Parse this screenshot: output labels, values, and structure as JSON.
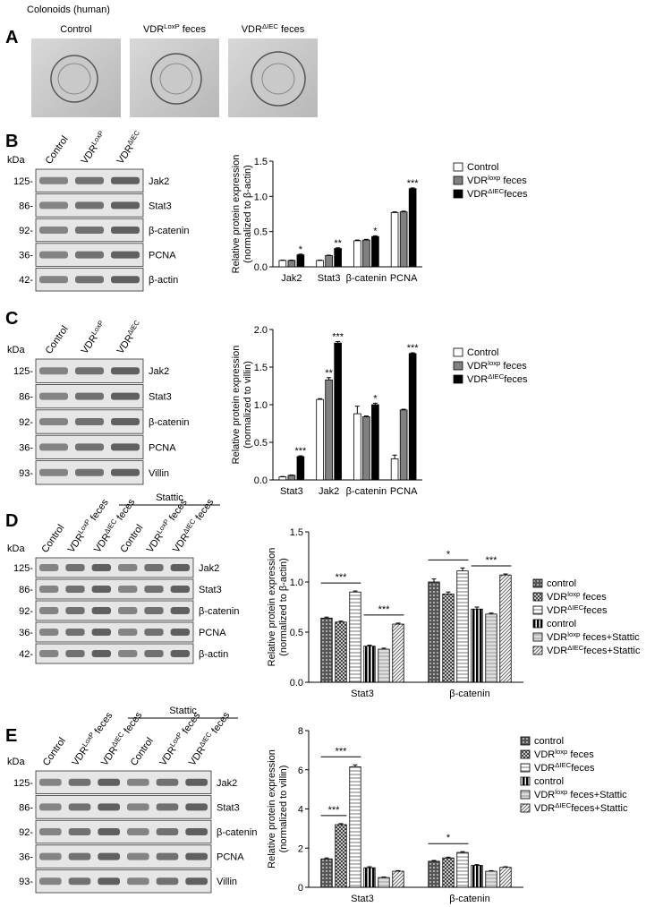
{
  "figure": {
    "A": {
      "letter": "A",
      "title": "Colonoids (human)",
      "columns": [
        "Control",
        {
          "main": "VDR",
          "sup": "LoxP",
          "rest": " feces"
        },
        {
          "main": "VDR",
          "sup": "ΔIEC",
          "rest": " feces"
        }
      ]
    },
    "B": {
      "letter": "B",
      "kda": "kDa",
      "markers": [
        "125-",
        "86-",
        "92-",
        "36-",
        "42-"
      ],
      "proteins": [
        "Jak2",
        "Stat3",
        "β-catenin",
        "PCNA",
        "β-actin"
      ],
      "lanes": [
        "Control",
        {
          "main": "VDR",
          "sup": "LoxP"
        },
        {
          "main": "VDR",
          "sup": "ΔIEC"
        }
      ]
    },
    "C": {
      "letter": "C",
      "kda": "kDa",
      "markers": [
        "125-",
        "86-",
        "92-",
        "36-",
        "93-"
      ],
      "proteins": [
        "Jak2",
        "Stat3",
        "β-catenin",
        "PCNA",
        "Villin"
      ],
      "lanes": [
        "Control",
        {
          "main": "VDR",
          "sup": "LoxP"
        },
        {
          "main": "VDR",
          "sup": "ΔIEC"
        }
      ]
    },
    "D": {
      "letter": "D",
      "kda": "kDa",
      "treatment": "Stattic",
      "markers": [
        "125-",
        "86-",
        "92-",
        "36-",
        "42-"
      ],
      "proteins": [
        "Jak2",
        "Stat3",
        "β-catenin",
        "PCNA",
        "β-actin"
      ],
      "lanes": [
        "Control",
        {
          "main": "VDR",
          "sup": "LoxP",
          "rest": " feces"
        },
        {
          "main": "VDR",
          "sup": "ΔIEC",
          "rest": " feces"
        },
        "Control",
        {
          "main": "VDR",
          "sup": "LoxP",
          "rest": " feces"
        },
        {
          "main": "VDR",
          "sup": "ΔIEC",
          "rest": " feces"
        }
      ]
    },
    "E": {
      "letter": "E",
      "kda": "kDa",
      "treatment": "Stattic",
      "markers": [
        "125-",
        "86-",
        "92-",
        "36-",
        "93-"
      ],
      "proteins": [
        "Jak2",
        "Stat3",
        "β-catenin",
        "PCNA",
        "Villin"
      ],
      "lanes": [
        "Control",
        {
          "main": "VDR",
          "sup": "LoxP",
          "rest": " feces"
        },
        {
          "main": "VDR",
          "sup": "ΔIEC",
          "rest": " feces"
        },
        "Control",
        {
          "main": "VDR",
          "sup": "LoxP",
          "rest": " feces"
        },
        {
          "main": "VDR",
          "sup": "ΔIEC",
          "rest": " feces"
        }
      ]
    }
  },
  "chart_data": [
    {
      "type": "bar",
      "ylabel": [
        "Relative protein expression",
        "(normalized to β-actin)"
      ],
      "categories": [
        "Jak2",
        "Stat3",
        "β-catenin",
        "PCNA"
      ],
      "ylim": [
        0,
        1.5
      ],
      "yticks": [
        {
          "value": 0,
          "label": "0.0"
        },
        0.5,
        {
          "value": 1,
          "label": "1.0"
        },
        1.5
      ],
      "series": [
        {
          "name": "Control",
          "color": "#ffffff",
          "values": [
            0.09,
            0.09,
            0.37,
            0.77
          ],
          "errors": [
            0.005,
            0.005,
            0.01,
            0.01
          ]
        },
        {
          "name": {
            "main": "VDR",
            "sup": "loxp",
            "rest": " feces"
          },
          "color": "#808080",
          "values": [
            0.09,
            0.16,
            0.38,
            0.78
          ],
          "errors": [
            0.005,
            0.005,
            0.01,
            0.01
          ]
        },
        {
          "name": {
            "main": "VDR",
            "sup": "ΔIEC",
            "rest": "feces"
          },
          "color": "#000000",
          "values": [
            0.17,
            0.26,
            0.43,
            1.11
          ],
          "errors": [
            0.01,
            0.01,
            0.01,
            0.01
          ],
          "significance": [
            "*",
            "**",
            "*",
            "***"
          ]
        }
      ]
    },
    {
      "type": "bar",
      "ylabel": [
        "Relative protein expression",
        "(normalized to villin)"
      ],
      "categories": [
        "Stat3",
        "Jak2",
        "β-catenin",
        "PCNA"
      ],
      "ylim": [
        0,
        2
      ],
      "yticks": [
        {
          "value": 0,
          "label": "0.0"
        },
        0.5,
        {
          "value": 1,
          "label": "1.0"
        },
        1.5,
        {
          "value": 2,
          "label": "2.0"
        }
      ],
      "series": [
        {
          "name": "Control",
          "color": "#ffffff",
          "values": [
            0.04,
            1.07,
            0.88,
            0.28
          ],
          "errors": [
            0.005,
            0.01,
            0.1,
            0.05
          ]
        },
        {
          "name": {
            "main": "VDR",
            "sup": "loxp",
            "rest": " feces"
          },
          "color": "#808080",
          "values": [
            0.06,
            1.33,
            0.84,
            0.93
          ],
          "errors": [
            0.005,
            0.03,
            0.01,
            0.01
          ],
          "significance": [
            null,
            "**",
            null,
            null
          ]
        },
        {
          "name": {
            "main": "VDR",
            "sup": "ΔIEC",
            "rest": "feces"
          },
          "color": "#000000",
          "values": [
            0.31,
            1.82,
            1.0,
            1.68
          ],
          "errors": [
            0.01,
            0.02,
            0.02,
            0.01
          ],
          "significance": [
            "***",
            "***",
            "*",
            "***"
          ]
        }
      ]
    },
    {
      "type": "bar",
      "ylabel": [
        "Relative protein expression",
        "(normalized to β-actin)"
      ],
      "categories": [
        "Stat3",
        "β-catenin"
      ],
      "ylim": [
        0,
        1.5
      ],
      "yticks": [
        {
          "value": 0,
          "label": "0.0"
        },
        0.5,
        {
          "value": 1,
          "label": "1.0"
        },
        1.5
      ],
      "series": [
        {
          "name": "control",
          "color": "#555555",
          "pattern": "checker",
          "values": [
            0.64,
            1.0
          ],
          "errors": [
            0.01,
            0.03
          ]
        },
        {
          "name": {
            "main": "VDR",
            "sup": "loxp",
            "rest": " feces"
          },
          "color": "#333333",
          "pattern": "cross",
          "values": [
            0.6,
            0.88
          ],
          "errors": [
            0.01,
            0.02
          ]
        },
        {
          "name": {
            "main": "VDR",
            "sup": "ΔIEC",
            "rest": "feces"
          },
          "color": "#777777",
          "pattern": "hlines",
          "values": [
            0.9,
            1.11
          ],
          "errors": [
            0.01,
            0.03
          ]
        },
        {
          "name": "control",
          "color": "#000000",
          "pattern": "vlines",
          "values": [
            0.36,
            0.73
          ],
          "errors": [
            0.01,
            0.02
          ]
        },
        {
          "name": {
            "main": "VDR",
            "sup": "loxp",
            "rest": " feces+Stattic"
          },
          "color": "#999999",
          "pattern": "light",
          "values": [
            0.33,
            0.68
          ],
          "errors": [
            0.01,
            0.01
          ]
        },
        {
          "name": {
            "main": "VDR",
            "sup": "ΔIEC",
            "rest": "feces+Stattic"
          },
          "color": "#666666",
          "pattern": "diag",
          "values": [
            0.58,
            1.07
          ],
          "errors": [
            0.01,
            0.01
          ]
        }
      ],
      "brackets": [
        {
          "category": "Stat3",
          "from": 0,
          "to": 2,
          "text": "***"
        },
        {
          "category": "Stat3",
          "from": 3,
          "to": 5,
          "text": "***"
        },
        {
          "category": "β-catenin",
          "from": 0,
          "to": 2,
          "text": "*"
        },
        {
          "category": "β-catenin",
          "from": 3,
          "to": 5,
          "text": "***"
        }
      ]
    },
    {
      "type": "bar",
      "ylabel": [
        "Relative protein expression",
        "(normalized to villin)"
      ],
      "categories": [
        "Stat3",
        "β-catenin"
      ],
      "ylim": [
        0,
        8
      ],
      "yticks": [
        0,
        2,
        4,
        6,
        8
      ],
      "series": [
        {
          "name": "control",
          "color": "#555555",
          "pattern": "checker",
          "values": [
            1.45,
            1.33
          ],
          "errors": [
            0.05,
            0.04
          ]
        },
        {
          "name": {
            "main": "VDR",
            "sup": "loxp",
            "rest": " feces"
          },
          "color": "#333333",
          "pattern": "cross",
          "values": [
            3.2,
            1.5
          ],
          "errors": [
            0.05,
            0.04
          ]
        },
        {
          "name": {
            "main": "VDR",
            "sup": "ΔIEC",
            "rest": "feces"
          },
          "color": "#777777",
          "pattern": "hlines",
          "values": [
            6.15,
            1.78
          ],
          "errors": [
            0.1,
            0.04
          ]
        },
        {
          "name": "control",
          "color": "#000000",
          "pattern": "vlines",
          "values": [
            1.0,
            1.12
          ],
          "errors": [
            0.05,
            0.04
          ]
        },
        {
          "name": {
            "main": "VDR",
            "sup": "loxp",
            "rest": " feces+Stattic"
          },
          "color": "#999999",
          "pattern": "light",
          "values": [
            0.5,
            0.82
          ],
          "errors": [
            0.03,
            0.03
          ]
        },
        {
          "name": {
            "main": "VDR",
            "sup": "ΔIEC",
            "rest": "feces+Stattic"
          },
          "color": "#666666",
          "pattern": "diag",
          "values": [
            0.82,
            1.02
          ],
          "errors": [
            0.03,
            0.03
          ]
        }
      ],
      "brackets": [
        {
          "category": "Stat3",
          "from": 0,
          "to": 1,
          "text": "***"
        },
        {
          "category": "Stat3",
          "from": 0,
          "to": 2,
          "text": "***"
        },
        {
          "category": "β-catenin",
          "from": 0,
          "to": 2,
          "text": "*"
        }
      ]
    }
  ]
}
